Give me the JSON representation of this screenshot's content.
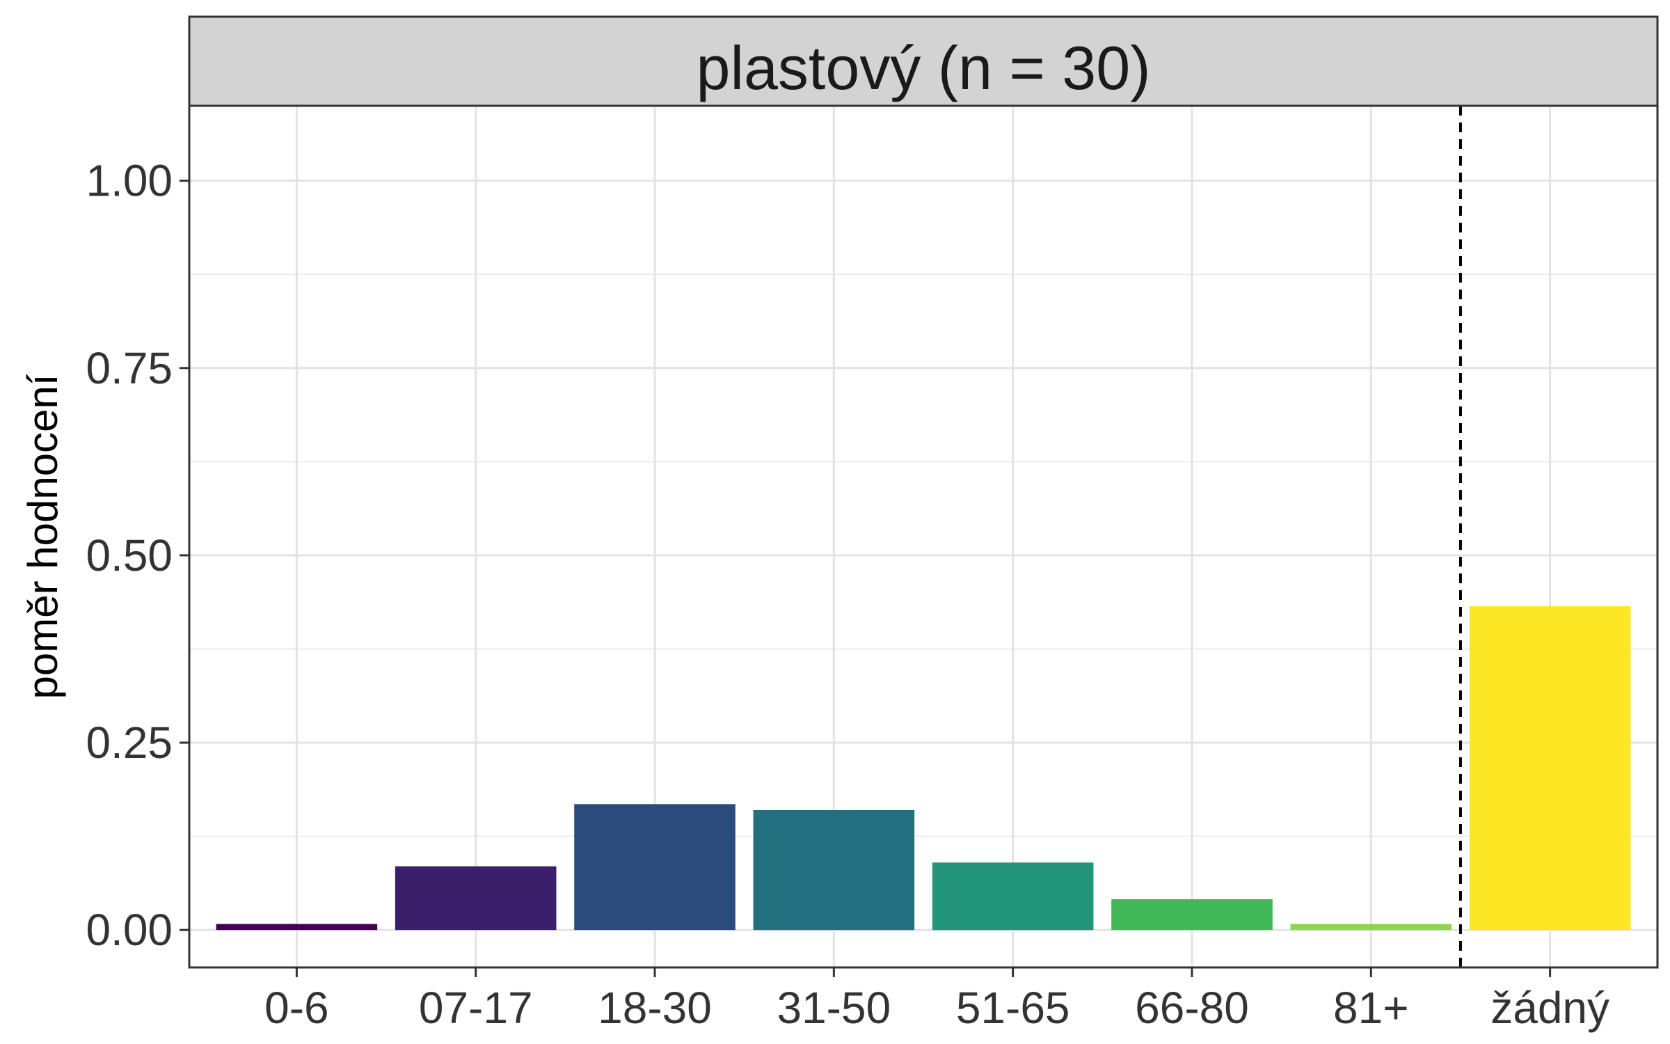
{
  "chart_data": {
    "type": "bar",
    "facet_title": "plastový (n = 30)",
    "xlabel": "",
    "ylabel": "poměr hodnocení",
    "ylim": [
      -0.05,
      1.1
    ],
    "yticks": [
      0.0,
      0.25,
      0.5,
      0.75,
      1.0
    ],
    "ytick_labels": [
      "0.00",
      "0.25",
      "0.50",
      "0.75",
      "1.00"
    ],
    "categories": [
      "0-6",
      "07-17",
      "18-30",
      "31-50",
      "51-65",
      "66-80",
      "81+",
      "žádný"
    ],
    "values": [
      0.008,
      0.085,
      0.168,
      0.16,
      0.09,
      0.041,
      0.008,
      0.432
    ],
    "colors": [
      "#440154",
      "#3B1F6B",
      "#2A4B7C",
      "#22707F",
      "#23957A",
      "#3FB958",
      "#8ED644",
      "#FDE725"
    ],
    "reference_line": {
      "style": "dashed",
      "between_categories": [
        "81+",
        "žádný"
      ]
    },
    "grid": true,
    "legend": "none"
  }
}
